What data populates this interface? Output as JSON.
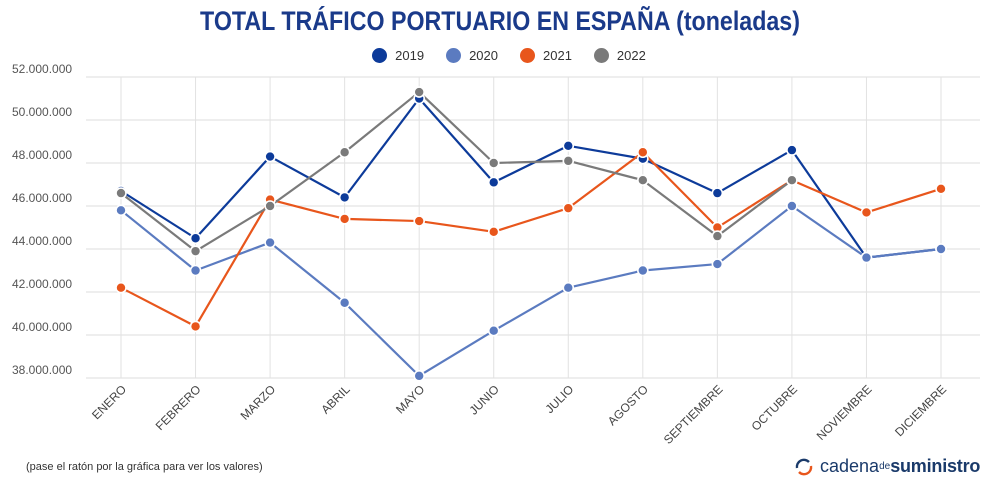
{
  "chart_data": {
    "type": "line",
    "title": "TOTAL TRÁFICO PORTUARIO EN ESPAÑA (toneladas)",
    "categories": [
      "ENERO",
      "FEBRERO",
      "MARZO",
      "ABRIL",
      "MAYO",
      "JUNIO",
      "JULIO",
      "AGOSTO",
      "SEPTIEMBRE",
      "OCTUBRE",
      "NOVIEMBRE",
      "DICIEMBRE"
    ],
    "ylim": [
      38000000,
      52000000
    ],
    "yticks": [
      38000000,
      40000000,
      42000000,
      44000000,
      46000000,
      48000000,
      50000000,
      52000000
    ],
    "ytick_labels": [
      "38.000.000",
      "40.000.000",
      "42.000.000",
      "44.000.000",
      "46.000.000",
      "48.000.000",
      "50.000.000",
      "52.000.000"
    ],
    "grid": true,
    "legend_position": "top-center",
    "series": [
      {
        "name": "2019",
        "color": "#0d3b9a",
        "values": [
          46700000,
          44500000,
          48300000,
          46400000,
          51000000,
          47100000,
          48800000,
          48200000,
          46600000,
          48600000,
          43600000,
          44000000
        ]
      },
      {
        "name": "2020",
        "color": "#5b7bc0",
        "values": [
          45800000,
          43000000,
          44300000,
          41500000,
          38100000,
          40200000,
          42200000,
          43000000,
          43300000,
          46000000,
          43600000,
          44000000
        ]
      },
      {
        "name": "2021",
        "color": "#e8561c",
        "values": [
          42200000,
          40400000,
          46300000,
          45400000,
          45300000,
          44800000,
          45900000,
          48500000,
          45000000,
          47200000,
          45700000,
          46800000
        ]
      },
      {
        "name": "2022",
        "color": "#7a7a7a",
        "values": [
          46600000,
          43900000,
          46000000,
          48500000,
          51300000,
          48000000,
          48100000,
          47200000,
          44600000,
          47200000,
          null,
          null
        ]
      }
    ]
  },
  "footer": {
    "note": "(pase el ratón por la gráfica para ver los valores)",
    "brand_part1": "cadena",
    "brand_part2": "de",
    "brand_part3": "suministro"
  }
}
